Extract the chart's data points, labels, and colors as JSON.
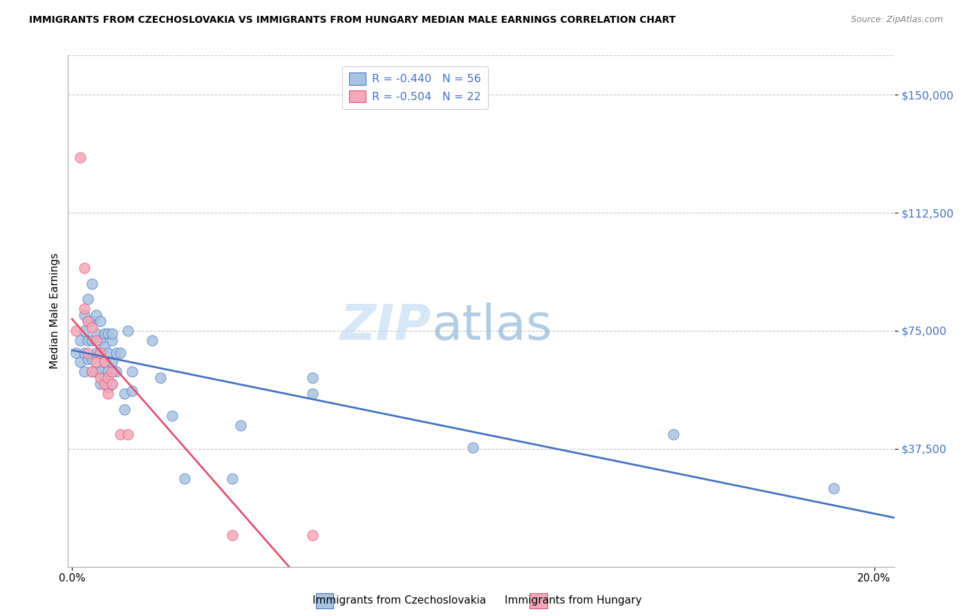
{
  "title": "IMMIGRANTS FROM CZECHOSLOVAKIA VS IMMIGRANTS FROM HUNGARY MEDIAN MALE EARNINGS CORRELATION CHART",
  "source": "Source: ZipAtlas.com",
  "ylabel": "Median Male Earnings",
  "ytick_labels": [
    "$37,500",
    "$75,000",
    "$112,500",
    "$150,000"
  ],
  "ytick_values": [
    37500,
    75000,
    112500,
    150000
  ],
  "y_min": 0,
  "y_max": 162500,
  "x_min": -0.001,
  "x_max": 0.205,
  "legend1_label": "R = -0.440   N = 56",
  "legend2_label": "R = -0.504   N = 22",
  "bottom_label1": "Immigrants from Czechoslovakia",
  "bottom_label2": "Immigrants from Hungary",
  "color_czech": "#a8c4e0",
  "color_hungary": "#f4a8b8",
  "line_color_czech": "#4472c4",
  "line_color_hungary": "#e05070",
  "czech_x": [
    0.001,
    0.002,
    0.002,
    0.003,
    0.003,
    0.003,
    0.003,
    0.004,
    0.004,
    0.004,
    0.004,
    0.005,
    0.005,
    0.005,
    0.005,
    0.005,
    0.006,
    0.006,
    0.006,
    0.006,
    0.007,
    0.007,
    0.007,
    0.007,
    0.007,
    0.008,
    0.008,
    0.008,
    0.008,
    0.009,
    0.009,
    0.009,
    0.009,
    0.01,
    0.01,
    0.01,
    0.01,
    0.011,
    0.011,
    0.012,
    0.013,
    0.013,
    0.014,
    0.015,
    0.015,
    0.02,
    0.022,
    0.025,
    0.028,
    0.04,
    0.042,
    0.06,
    0.06,
    0.1,
    0.15,
    0.19
  ],
  "czech_y": [
    68000,
    72000,
    65000,
    75000,
    80000,
    68000,
    62000,
    85000,
    78000,
    72000,
    66000,
    90000,
    78000,
    72000,
    66000,
    62000,
    80000,
    74000,
    68000,
    62000,
    78000,
    72000,
    68000,
    62000,
    58000,
    74000,
    70000,
    65000,
    60000,
    74000,
    68000,
    62000,
    57000,
    72000,
    65000,
    58000,
    74000,
    68000,
    62000,
    68000,
    55000,
    50000,
    75000,
    62000,
    56000,
    72000,
    60000,
    48000,
    28000,
    28000,
    45000,
    60000,
    55000,
    38000,
    42000,
    25000
  ],
  "hungary_x": [
    0.001,
    0.002,
    0.003,
    0.003,
    0.004,
    0.004,
    0.005,
    0.005,
    0.006,
    0.006,
    0.007,
    0.007,
    0.008,
    0.008,
    0.009,
    0.009,
    0.01,
    0.01,
    0.012,
    0.014,
    0.04,
    0.06
  ],
  "hungary_y": [
    75000,
    130000,
    95000,
    82000,
    78000,
    68000,
    76000,
    62000,
    72000,
    65000,
    68000,
    60000,
    65000,
    58000,
    60000,
    55000,
    62000,
    58000,
    42000,
    42000,
    10000,
    10000
  ]
}
